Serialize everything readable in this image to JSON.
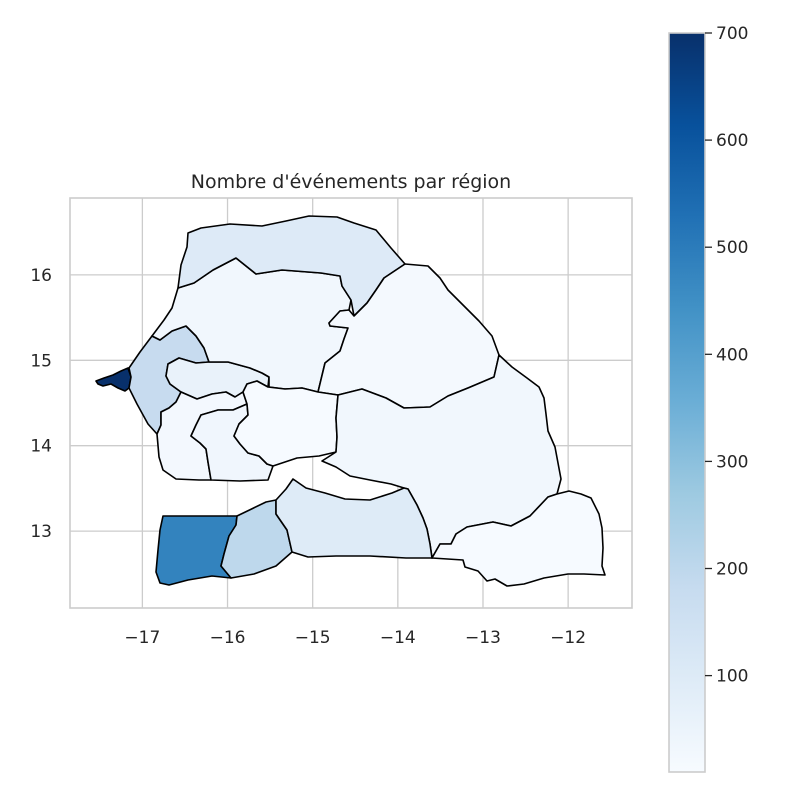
{
  "chart_data": {
    "type": "choropleth",
    "title": "Nombre d'événements par région",
    "x_ticks": [
      -17,
      -16,
      -15,
      -14,
      -13,
      -12
    ],
    "y_ticks": [
      13,
      14,
      15,
      16
    ],
    "xlim": [
      -17.85,
      -11.25
    ],
    "ylim": [
      12.1,
      16.9
    ],
    "grid": true,
    "colormap": "Blues",
    "colorbar": {
      "min": 10,
      "max": 700,
      "ticks": [
        100,
        200,
        300,
        400,
        500,
        600,
        700
      ],
      "placement": "right"
    },
    "regions": [
      {
        "name": "Dakar",
        "value": 700
      },
      {
        "name": "Thiès",
        "value": 180
      },
      {
        "name": "Diourbel",
        "value": 60
      },
      {
        "name": "Louga",
        "value": 30
      },
      {
        "name": "Saint-Louis",
        "value": 100
      },
      {
        "name": "Matam",
        "value": 20
      },
      {
        "name": "Fatick",
        "value": 25
      },
      {
        "name": "Kaolack",
        "value": 35
      },
      {
        "name": "Kaffrine",
        "value": 15
      },
      {
        "name": "Tambacounda",
        "value": 30
      },
      {
        "name": "Kédougou",
        "value": 15
      },
      {
        "name": "Ziguinchor",
        "value": 480
      },
      {
        "name": "Sédhiou",
        "value": 200
      },
      {
        "name": "Kolda",
        "value": 95
      }
    ]
  }
}
